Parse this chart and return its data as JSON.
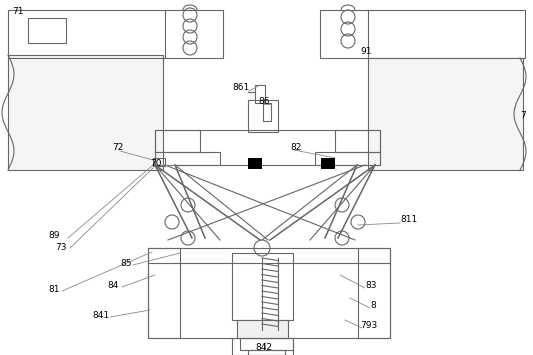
{
  "bg_color": "#ffffff",
  "lc": "#888888",
  "dk": "#666666",
  "bk": "#000000",
  "figsize": [
    5.33,
    3.55
  ],
  "dpi": 100
}
